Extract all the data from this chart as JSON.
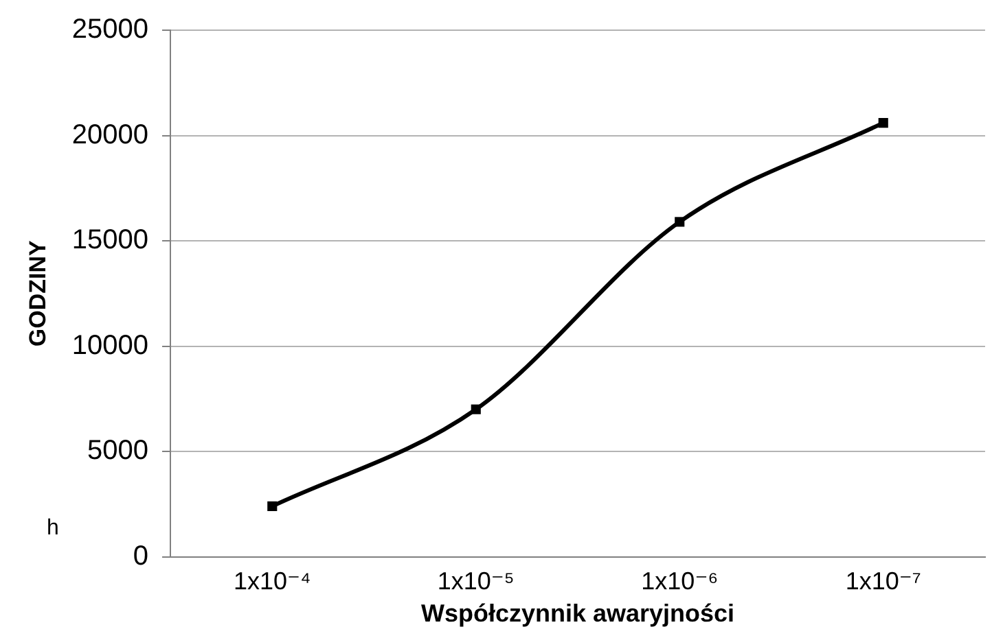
{
  "chart_data": {
    "type": "line",
    "xlabel": "Współczynnik awaryjności",
    "ylabel": "GODZINY",
    "categories": [
      "1x10⁻⁴",
      "1x10⁻⁵",
      "1x10⁻⁶",
      "1x10⁻⁷"
    ],
    "series": [
      {
        "color": "#000000",
        "values": [
          2400,
          7000,
          15900,
          20600
        ]
      }
    ],
    "ylim": [
      0,
      25000
    ],
    "yticks": [
      0,
      5000,
      10000,
      15000,
      20000,
      25000
    ],
    "grid": "y",
    "legend": false,
    "marker": "square",
    "line_style": "solid",
    "annotations": [
      "h"
    ]
  }
}
